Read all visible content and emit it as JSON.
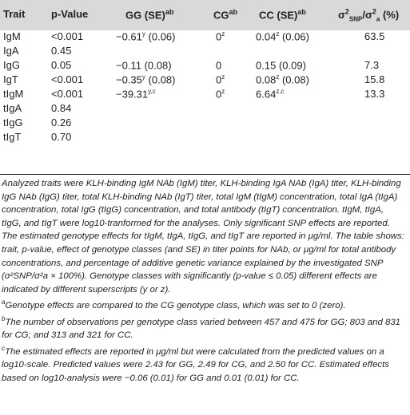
{
  "header": {
    "trait": "Trait",
    "pvalue": "p-Value",
    "gg": "GG (SE)",
    "gg_sup": "ab",
    "cg": "CG",
    "cg_sup": "ab",
    "cc": "CC (SE)",
    "cc_sup": "ab",
    "sigma": "σ²SNP/σ²a (%)"
  },
  "rows": [
    {
      "trait": "IgM",
      "p": "<0.001",
      "gg": "−0.61",
      "gg_sup": "y",
      "gg_se": "(0.06)",
      "cg": "0",
      "cg_sup": "z",
      "cc": "0.04",
      "cc_sup": "z",
      "cc_se": "(0.06)",
      "sigma": "63.5"
    },
    {
      "trait": "IgA",
      "p": "0.45",
      "gg": "",
      "gg_sup": "",
      "gg_se": "",
      "cg": "",
      "cg_sup": "",
      "cc": "",
      "cc_sup": "",
      "cc_se": "",
      "sigma": ""
    },
    {
      "trait": "IgG",
      "p": "0.05",
      "gg": "−0.11",
      "gg_sup": "",
      "gg_se": "(0.08)",
      "cg": "0",
      "cg_sup": "",
      "cc": "0.15",
      "cc_sup": "",
      "cc_se": "(0.09)",
      "sigma": "7.3"
    },
    {
      "trait": "IgT",
      "p": "<0.001",
      "gg": "−0.35",
      "gg_sup": "y",
      "gg_se": "(0.08)",
      "cg": "0",
      "cg_sup": "z",
      "cc": "0.08",
      "cc_sup": "z",
      "cc_se": "(0.08)",
      "sigma": "15.8"
    },
    {
      "trait": "tIgM",
      "p": "<0.001",
      "gg": "−39.31",
      "gg_sup": "y,c",
      "gg_se": "",
      "cg": "0",
      "cg_sup": "z",
      "cc": "6.64",
      "cc_sup": "z,c",
      "cc_se": "",
      "sigma": "13.3"
    },
    {
      "trait": "tIgA",
      "p": "0.84",
      "gg": "",
      "gg_sup": "",
      "gg_se": "",
      "cg": "",
      "cg_sup": "",
      "cc": "",
      "cc_sup": "",
      "cc_se": "",
      "sigma": ""
    },
    {
      "trait": "tIgG",
      "p": "0.26",
      "gg": "",
      "gg_sup": "",
      "gg_se": "",
      "cg": "",
      "cg_sup": "",
      "cc": "",
      "cc_sup": "",
      "cc_se": "",
      "sigma": ""
    },
    {
      "trait": "tIgT",
      "p": "0.70",
      "gg": "",
      "gg_sup": "",
      "gg_se": "",
      "cg": "",
      "cg_sup": "",
      "cc": "",
      "cc_sup": "",
      "cc_se": "",
      "sigma": ""
    }
  ],
  "footnotes": {
    "main": "Analyzed traits were KLH-binding IgM NAb (IgM) titer, KLH-binding IgA NAb (IgA) titer, KLH-binding IgG NAb (IgG) titer, total KLH-binding NAb (IgT) titer, total IgM (tIgM) concentration, total IgA (tIgA) concentration, total IgG (tIgG) concentration, and total antibody (tIgT) concentration. tIgM, tIgA, tIgG, and tIgT were log10-tranformed for the analyses. Only significant SNP effects are reported. The estimated genotype effects for tIgM, tIgA, tIgG, and tIgT are reported in μg/ml. The table shows: trait, p-value, effect of genotype classes (and SE) in titer points for NAb, or μg/ml for total antibody concentrations, and percentage of additive genetic variance explained by the investigated SNP (σ²SNP/σ²a × 100%). Genotype classes with significantly (p-value ≤ 0.05) different effects are indicated by different superscripts (y or z).",
    "a_mark": "a",
    "a": "Genotype effects are compared to the CG genotype class, which was set to 0 (zero).",
    "b_mark": "b",
    "b": "The number of observations per genotype class varied between 457 and 475 for GG; 803 and 831 for CG; and 313 and 321 for CC.",
    "c_mark": "c",
    "c": "The estimated effects are reported in μg/ml but were calculated from the predicted values on a log10-scale. Predicted values were 2.43 for GG, 2.49 for CG, and 2.50 for CC. Estimated effects based on log10-analysis were −0.06 (0.01) for GG and 0.01 (0.01) for CC."
  }
}
